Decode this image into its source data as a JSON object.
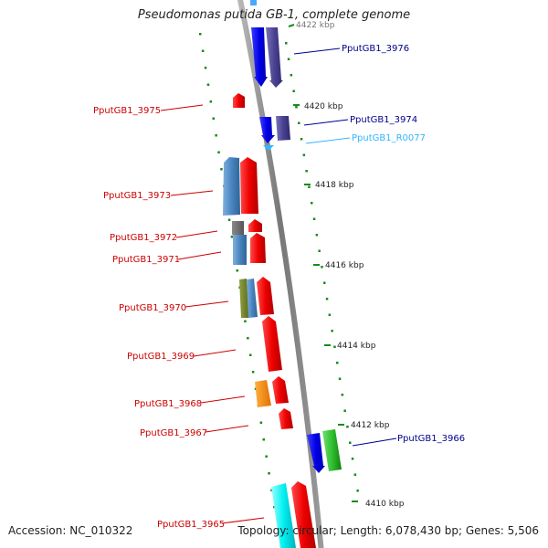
{
  "title": "Pseudomonas putida GB-1, complete genome",
  "accession": "Accession: NC_010322",
  "summary": "Topology: circular; Length: 6,078,430 bp; Genes: 5,506",
  "colors": {
    "backbone": "#8c8c8c",
    "tick": "#1a8a1a",
    "forward_label": "#00008b",
    "reverse_label": "#cc0000",
    "rna_label": "#33b5ff"
  },
  "scale_labels": [
    {
      "text": "4422 kbp"
    },
    {
      "text": "4420 kbp"
    },
    {
      "text": "4418 kbp"
    },
    {
      "text": "4416 kbp"
    },
    {
      "text": "4414 kbp"
    },
    {
      "text": "4412 kbp"
    },
    {
      "text": "4410 kbp"
    }
  ],
  "labels": [
    {
      "text": "PputGB1_3976",
      "strand": "forward"
    },
    {
      "text": "PputGB1_3975",
      "strand": "reverse"
    },
    {
      "text": "PputGB1_3974",
      "strand": "forward"
    },
    {
      "text": "PputGB1_R0077",
      "strand": "rna"
    },
    {
      "text": "PputGB1_3973",
      "strand": "reverse"
    },
    {
      "text": "PputGB1_3972",
      "strand": "reverse"
    },
    {
      "text": "PputGB1_3971",
      "strand": "reverse"
    },
    {
      "text": "PputGB1_3970",
      "strand": "reverse"
    },
    {
      "text": "PputGB1_3969",
      "strand": "reverse"
    },
    {
      "text": "PputGB1_3968",
      "strand": "reverse"
    },
    {
      "text": "PputGB1_3967",
      "strand": "reverse"
    },
    {
      "text": "PputGB1_3966",
      "strand": "forward"
    },
    {
      "text": "PputGB1_3965",
      "strand": "reverse"
    }
  ]
}
